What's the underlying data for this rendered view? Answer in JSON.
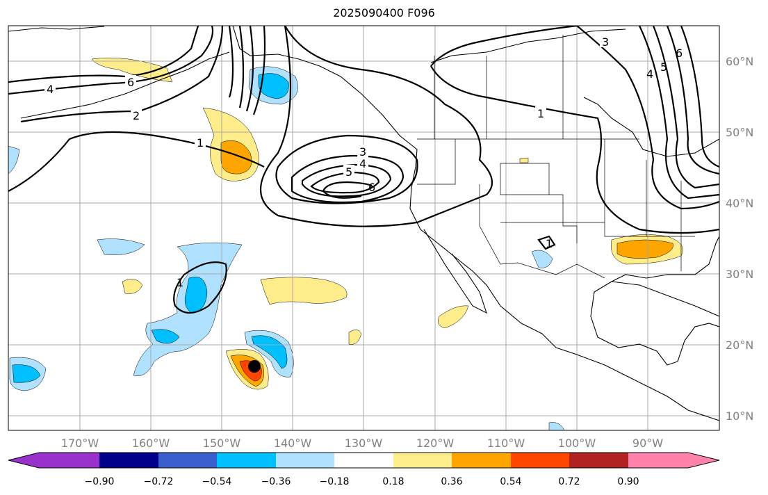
{
  "title": "2025090400 F096",
  "x_ticks": [
    "170°W",
    "160°W",
    "150°W",
    "140°W",
    "130°W",
    "120°W",
    "110°W",
    "100°W",
    "90°W"
  ],
  "y_ticks": [
    "60°N",
    "50°N",
    "40°N",
    "30°N",
    "20°N",
    "10°N"
  ],
  "colorbar": {
    "colors": [
      "#9932cc",
      "#00008b",
      "#3a5fcd",
      "#00bfff",
      "#b0e2ff",
      "#ffffff",
      "#ffec8b",
      "#ffa500",
      "#ff4500",
      "#b22222",
      "#ff82ab"
    ],
    "labels": [
      "−0.90",
      "−0.72",
      "−0.54",
      "−0.36",
      "−0.18",
      "0.18",
      "0.36",
      "0.54",
      "0.72",
      "0.90"
    ]
  },
  "contour_labels": {
    "a4": "4",
    "a6": "6",
    "a2": "2",
    "a1": "1",
    "c3": "3",
    "c4": "4",
    "c5": "5",
    "c6": "6",
    "n1": "1",
    "n3": "3",
    "e4": "4",
    "e5": "5",
    "e6": "6",
    "s1": "1",
    "h1": "1"
  }
}
